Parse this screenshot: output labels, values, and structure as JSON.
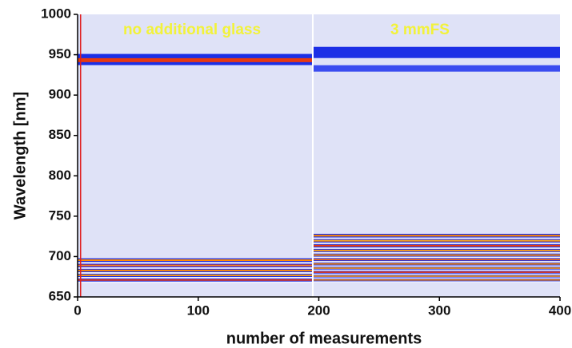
{
  "chart_data": {
    "type": "heatmap",
    "xlabel": "number of measurements",
    "ylabel": "Wavelength [nm]",
    "xlim": [
      0,
      400
    ],
    "ylim": [
      650,
      1000
    ],
    "xticks": [
      0,
      100,
      200,
      300,
      400
    ],
    "yticks": [
      650,
      700,
      750,
      800,
      850,
      900,
      950,
      1000
    ],
    "annotations": [
      "no additional glass",
      "3 mmFS"
    ]
  }
}
